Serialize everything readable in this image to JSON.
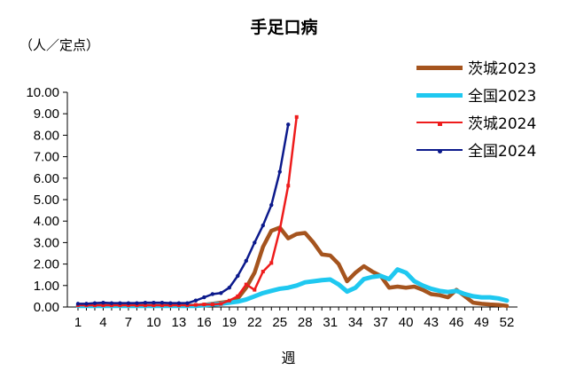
{
  "chart_data": {
    "type": "line",
    "title": "手足口病",
    "ylabel": "（人／定点）",
    "xlabel": "週",
    "ylim": [
      0,
      10
    ],
    "y_ticks": [
      "0.00",
      "1.00",
      "2.00",
      "3.00",
      "4.00",
      "5.00",
      "6.00",
      "7.00",
      "8.00",
      "9.00",
      "10.00"
    ],
    "x_range": [
      1,
      52
    ],
    "x_ticks": [
      1,
      4,
      7,
      10,
      13,
      16,
      19,
      22,
      25,
      28,
      31,
      34,
      37,
      40,
      43,
      46,
      49,
      52
    ],
    "grid": false,
    "legend_position": "right",
    "series": [
      {
        "name": "茨城2023",
        "color": "#A5541E",
        "marker": "none",
        "x": [
          1,
          2,
          3,
          4,
          5,
          6,
          7,
          8,
          9,
          10,
          11,
          12,
          13,
          14,
          15,
          16,
          17,
          18,
          19,
          20,
          21,
          22,
          23,
          24,
          25,
          26,
          27,
          28,
          29,
          30,
          31,
          32,
          33,
          34,
          35,
          36,
          37,
          38,
          39,
          40,
          41,
          42,
          43,
          44,
          45,
          46,
          47,
          48,
          49,
          50,
          51,
          52
        ],
        "values": [
          0.05,
          0.05,
          0.05,
          0.05,
          0.05,
          0.05,
          0.05,
          0.05,
          0.05,
          0.05,
          0.05,
          0.05,
          0.05,
          0.05,
          0.05,
          0.1,
          0.15,
          0.2,
          0.25,
          0.4,
          0.9,
          1.6,
          2.8,
          3.55,
          3.7,
          3.2,
          3.4,
          3.45,
          3.0,
          2.45,
          2.4,
          2.0,
          1.2,
          1.6,
          1.9,
          1.65,
          1.45,
          0.9,
          0.95,
          0.9,
          0.95,
          0.8,
          0.6,
          0.55,
          0.45,
          0.8,
          0.5,
          0.2,
          0.15,
          0.12,
          0.1,
          0.05
        ]
      },
      {
        "name": "全国2023",
        "color": "#1FC8F0",
        "marker": "none",
        "x": [
          1,
          2,
          3,
          4,
          5,
          6,
          7,
          8,
          9,
          10,
          11,
          12,
          13,
          14,
          15,
          16,
          17,
          18,
          19,
          20,
          21,
          22,
          23,
          24,
          25,
          26,
          27,
          28,
          29,
          30,
          31,
          32,
          33,
          34,
          35,
          36,
          37,
          38,
          39,
          40,
          41,
          42,
          43,
          44,
          45,
          46,
          47,
          48,
          49,
          50,
          51,
          52
        ],
        "values": [
          0.05,
          0.05,
          0.05,
          0.05,
          0.05,
          0.05,
          0.05,
          0.05,
          0.05,
          0.05,
          0.05,
          0.05,
          0.05,
          0.05,
          0.05,
          0.08,
          0.12,
          0.15,
          0.2,
          0.25,
          0.35,
          0.5,
          0.65,
          0.75,
          0.85,
          0.9,
          1.0,
          1.15,
          1.2,
          1.25,
          1.28,
          1.05,
          0.72,
          0.9,
          1.3,
          1.4,
          1.45,
          1.3,
          1.75,
          1.6,
          1.2,
          1.0,
          0.85,
          0.75,
          0.7,
          0.75,
          0.6,
          0.5,
          0.45,
          0.45,
          0.4,
          0.3
        ]
      },
      {
        "name": "茨城2024",
        "color": "#EE1C1C",
        "marker": "square",
        "x": [
          1,
          2,
          3,
          4,
          5,
          6,
          7,
          8,
          9,
          10,
          11,
          12,
          13,
          14,
          15,
          16,
          17,
          18,
          19,
          20,
          21,
          22,
          23,
          24,
          25,
          26,
          27
        ],
        "values": [
          0.08,
          0.08,
          0.08,
          0.08,
          0.08,
          0.08,
          0.08,
          0.08,
          0.08,
          0.08,
          0.08,
          0.08,
          0.08,
          0.08,
          0.1,
          0.12,
          0.12,
          0.15,
          0.3,
          0.5,
          1.05,
          0.8,
          1.65,
          2.05,
          3.6,
          5.65,
          8.85
        ]
      },
      {
        "name": "全国2024",
        "color": "#0C1A8C",
        "marker": "circle",
        "x": [
          1,
          2,
          3,
          4,
          5,
          6,
          7,
          8,
          9,
          10,
          11,
          12,
          13,
          14,
          15,
          16,
          17,
          18,
          19,
          20,
          21,
          22,
          23,
          24,
          25,
          26
        ],
        "values": [
          0.15,
          0.15,
          0.18,
          0.2,
          0.18,
          0.18,
          0.18,
          0.18,
          0.2,
          0.2,
          0.2,
          0.18,
          0.18,
          0.18,
          0.3,
          0.45,
          0.6,
          0.65,
          0.9,
          1.45,
          2.15,
          3.0,
          3.8,
          4.75,
          6.3,
          8.5
        ]
      }
    ]
  }
}
